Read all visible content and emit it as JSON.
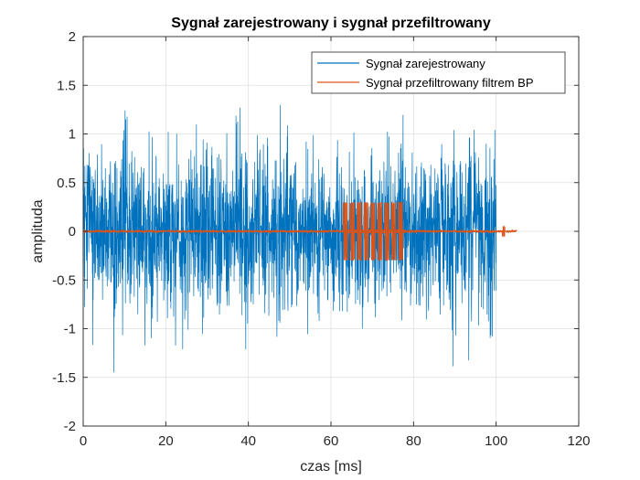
{
  "chart_data": {
    "type": "line",
    "title": "Sygnał zarejestrowany i sygnał przefiltrowany",
    "xlabel": "czas [ms]",
    "ylabel": "amplituda",
    "xlim": [
      0,
      120
    ],
    "ylim": [
      -2,
      2
    ],
    "xticks": [
      0,
      20,
      40,
      60,
      80,
      100,
      120
    ],
    "yticks": [
      -2,
      -1.5,
      -1,
      -0.5,
      0,
      0.5,
      1,
      1.5,
      2
    ],
    "xtick_labels": [
      "0",
      "20",
      "40",
      "60",
      "80",
      "100",
      "120"
    ],
    "ytick_labels": [
      "-2",
      "-1.5",
      "-1",
      "-0.5",
      "0",
      "0.5",
      "1",
      "1.5",
      "2"
    ],
    "grid": true,
    "legend_position": "top-right",
    "series": [
      {
        "name": "Sygnał zarejestrowany",
        "color": "#0072BD",
        "shape": "random-noise",
        "x_range": [
          0,
          100
        ],
        "amplitude_rms": 0.4,
        "peak_min": -1.75,
        "peak_max": 1.6
      },
      {
        "name": "Sygnał przefiltrowany filtrem BP",
        "color": "#D95319",
        "shape": "tone-bursts",
        "x_range": [
          0,
          105
        ],
        "bursts": [
          {
            "start": 63,
            "end": 78,
            "amplitude": 0.3,
            "cycles": 9
          },
          {
            "start": 101.5,
            "end": 102.5,
            "amplitude": 0.05,
            "cycles": 1
          }
        ],
        "baseline_amplitude": 0.01
      }
    ]
  }
}
